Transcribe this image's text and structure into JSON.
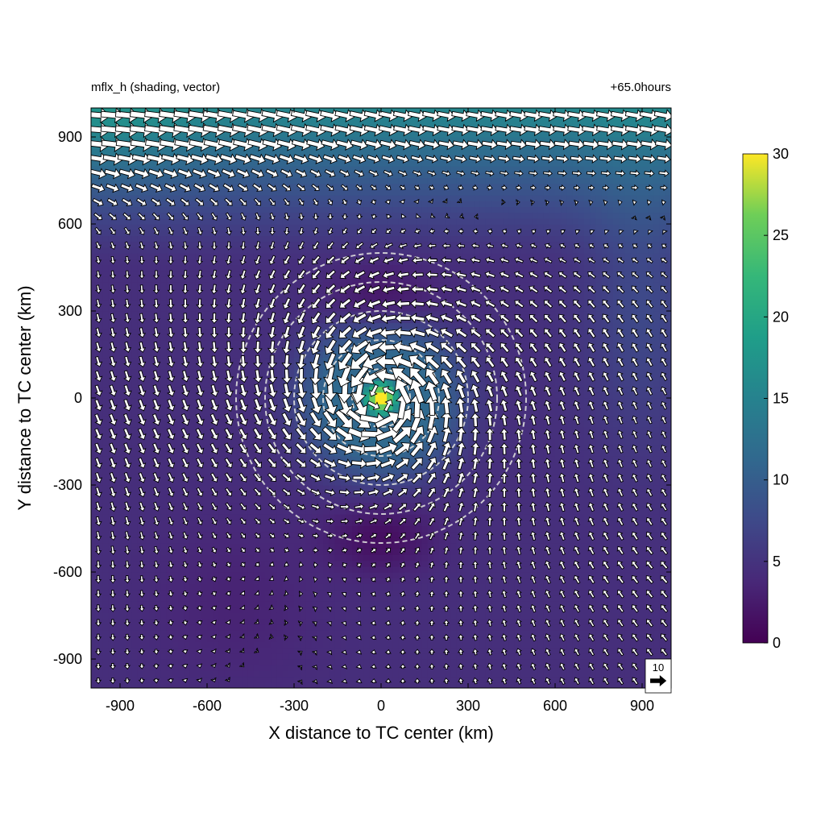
{
  "header": {
    "left": "mflx_h (shading, vector)",
    "right": "+65.0hours"
  },
  "chart_data": {
    "type": "heatmap",
    "title": "mflx_h (shading, vector)",
    "time_label": "+65.0hours",
    "xlabel": "X distance to TC center (km)",
    "ylabel": "Y distance to TC center (km)",
    "xlim": [
      -1000,
      1000
    ],
    "ylim": [
      -1000,
      1000
    ],
    "xticks": [
      -900,
      -600,
      -300,
      0,
      300,
      600,
      900
    ],
    "yticks": [
      -900,
      -600,
      -300,
      0,
      300,
      600,
      900
    ],
    "xtick_labels": [
      "-900",
      "-600",
      "-300",
      "0",
      "300",
      "600",
      "900"
    ],
    "ytick_labels": [
      "-900",
      "-600",
      "-300",
      "0",
      "300",
      "600",
      "900"
    ],
    "shading": {
      "variable": "mflx_h",
      "colormap": "viridis",
      "range": [
        0,
        30
      ],
      "features": [
        {
          "x": 0,
          "y": 0,
          "value": 30,
          "note": "peak at TC center"
        },
        {
          "x": 0,
          "y": 980,
          "value": 17,
          "note": "northern band"
        },
        {
          "x": -950,
          "y": 950,
          "value": 19,
          "note": "north-west corner"
        },
        {
          "x": 0,
          "y": 330,
          "value": 3,
          "note": "minimum north of center"
        },
        {
          "x": 0,
          "y": -480,
          "value": 3,
          "note": "minimum south of center"
        }
      ]
    },
    "colorbar": {
      "ticks": [
        0,
        5,
        10,
        15,
        20,
        25,
        30
      ],
      "tick_labels": [
        "0",
        "5",
        "10",
        "15",
        "20",
        "25",
        "30"
      ]
    },
    "vectors": {
      "grid_spacing_km": 50,
      "reference_vector": 10,
      "reference_label": "10",
      "pattern": "cyclonic flow around TC center, strong westerly flow in the north"
    },
    "range_circles_km": [
      100,
      200,
      300,
      400,
      500
    ],
    "colors": {
      "vector_fill": "#ffffff",
      "vector_edge": "#000000",
      "circle": "#dcdcdc"
    }
  }
}
